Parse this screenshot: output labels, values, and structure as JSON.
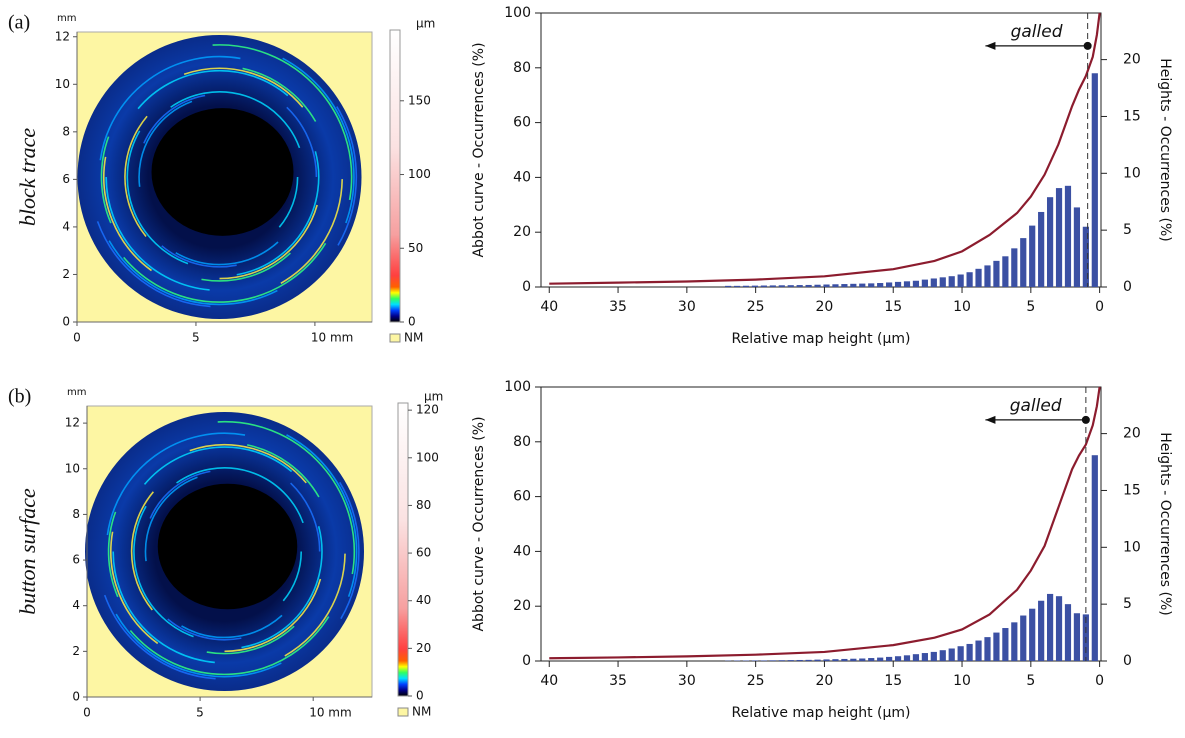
{
  "chart_data": [
    {
      "type": "heatmap",
      "label": "(a)",
      "title": "block trace",
      "ylabel": "mm",
      "xlim": [
        0,
        12.4
      ],
      "xticks": [
        0,
        5,
        {
          "value": 10,
          "label": "10 mm"
        }
      ],
      "ylim": [
        0,
        12.2
      ],
      "yticks": [
        0,
        2,
        4,
        6,
        8,
        10,
        12
      ],
      "colorbar": {
        "label": "µm",
        "lim": [
          0,
          198
        ],
        "ticks": [
          0,
          50,
          100,
          150
        ]
      },
      "legend": {
        "label": "NM",
        "color": "#fdf6a3"
      }
    },
    {
      "type": "combo",
      "xlabel": "Relative map height (µm)",
      "ylabel": "Abbot curve - Occurrences (%)",
      "y2label": "Heights - Occurrences (%)",
      "xlim": [
        40.6,
        -0.1
      ],
      "xticks": [
        40,
        35,
        30,
        25,
        20,
        15,
        10,
        5,
        0
      ],
      "ylim": [
        0,
        100
      ],
      "yticks": [
        0,
        20,
        40,
        60,
        80,
        100
      ],
      "y2lim": [
        0,
        24.1
      ],
      "y2ticks": [
        0,
        5,
        10,
        15,
        20
      ],
      "vline_x": 0.87,
      "annotation": {
        "text": "galled",
        "x": 0.87,
        "y": 88,
        "arrow_to_x": 8.3
      },
      "series": [
        {
          "type": "bar",
          "axis": "y2",
          "color": "#3b50a3",
          "x": [
            0.35,
            1.0,
            1.65,
            2.3,
            2.95,
            3.6,
            4.25,
            4.9,
            5.55,
            6.2,
            6.85,
            7.5,
            8.15,
            8.8,
            9.45,
            10.1,
            10.75,
            11.4,
            12.05,
            12.7,
            13.35,
            14.0,
            14.65,
            15.3,
            15.95,
            16.6,
            17.25,
            17.9,
            18.55,
            19.2,
            19.85,
            20.5,
            21.15,
            21.8,
            22.45,
            23.1,
            23.75,
            24.4,
            25.05,
            25.7,
            26.35,
            27.0
          ],
          "values": [
            18.8,
            5.3,
            7.0,
            8.9,
            8.7,
            7.9,
            6.6,
            5.4,
            4.3,
            3.4,
            2.7,
            2.3,
            1.9,
            1.6,
            1.3,
            1.1,
            0.95,
            0.85,
            0.75,
            0.65,
            0.55,
            0.5,
            0.45,
            0.4,
            0.35,
            0.32,
            0.3,
            0.28,
            0.26,
            0.24,
            0.22,
            0.2,
            0.18,
            0.17,
            0.16,
            0.15,
            0.14,
            0.13,
            0.12,
            0.11,
            0.1,
            0.1
          ]
        },
        {
          "type": "line",
          "color": "#8c1c2e",
          "x": [
            40,
            35,
            30,
            25,
            20,
            15,
            12,
            10,
            8,
            6,
            5,
            4,
            3,
            2,
            1.5,
            1,
            0.5,
            0.2,
            0
          ],
          "values": [
            1.2,
            1.6,
            2.0,
            2.7,
            3.9,
            6.5,
            9.5,
            13,
            19,
            27,
            33,
            41,
            52,
            66,
            72,
            77,
            84,
            92,
            100
          ]
        }
      ]
    },
    {
      "type": "heatmap",
      "label": "(b)",
      "title": "button surface",
      "ylabel": "mm",
      "xlim": [
        0,
        12.6
      ],
      "xticks": [
        0,
        5,
        {
          "value": 10,
          "label": "10 mm"
        }
      ],
      "ylim": [
        0,
        12.75
      ],
      "yticks": [
        0,
        2,
        4,
        6,
        8,
        10,
        12
      ],
      "colorbar": {
        "label": "µm",
        "lim": [
          0,
          123
        ],
        "ticks": [
          0,
          20,
          40,
          60,
          80,
          100,
          120
        ]
      },
      "legend": {
        "label": "NM",
        "color": "#fdf6a3"
      }
    },
    {
      "type": "combo",
      "xlabel": "Relative map height (µm)",
      "ylabel": "Abbot curve - Occurrences (%)",
      "y2label": "Heights - Occurrences (%)",
      "xlim": [
        40.6,
        -0.1
      ],
      "xticks": [
        40,
        35,
        30,
        25,
        20,
        15,
        10,
        5,
        0
      ],
      "ylim": [
        0,
        100
      ],
      "yticks": [
        0,
        20,
        40,
        60,
        80,
        100
      ],
      "y2lim": [
        0,
        24.1
      ],
      "y2ticks": [
        0,
        5,
        10,
        15,
        20
      ],
      "vline_x": 1.0,
      "annotation": {
        "text": "galled",
        "x": 1.0,
        "y": 88,
        "arrow_to_x": 8.3
      },
      "series": [
        {
          "type": "bar",
          "axis": "y2",
          "color": "#3b50a3",
          "x": [
            0.35,
            1.0,
            1.65,
            2.3,
            2.95,
            3.6,
            4.25,
            4.9,
            5.55,
            6.2,
            6.85,
            7.5,
            8.15,
            8.8,
            9.45,
            10.1,
            10.75,
            11.4,
            12.05,
            12.7,
            13.35,
            14.0,
            14.65,
            15.3,
            15.95,
            16.6,
            17.25,
            17.9,
            18.55,
            19.2,
            19.85,
            20.5,
            21.15,
            21.8,
            22.45,
            23.1,
            23.75,
            24.4,
            25.05,
            25.7,
            26.35,
            27.0
          ],
          "values": [
            18.1,
            4.1,
            4.2,
            5.0,
            5.7,
            5.9,
            5.3,
            4.6,
            4.0,
            3.4,
            2.9,
            2.5,
            2.1,
            1.8,
            1.5,
            1.3,
            1.1,
            0.95,
            0.8,
            0.7,
            0.6,
            0.5,
            0.42,
            0.36,
            0.3,
            0.26,
            0.22,
            0.2,
            0.18,
            0.16,
            0.14,
            0.12,
            0.1,
            0.09,
            0.08,
            0.07,
            0.06,
            0.05,
            0.05,
            0.04,
            0.04,
            0.03
          ]
        },
        {
          "type": "line",
          "color": "#8c1c2e",
          "x": [
            40,
            35,
            30,
            25,
            20,
            15,
            12,
            10,
            8,
            6,
            5,
            4,
            3,
            2,
            1.5,
            1,
            0.5,
            0.2,
            0
          ],
          "values": [
            1.0,
            1.3,
            1.7,
            2.3,
            3.3,
            5.8,
            8.5,
            11.5,
            17,
            26,
            33,
            42,
            56,
            70,
            75,
            79,
            86,
            93,
            100
          ]
        }
      ]
    }
  ]
}
